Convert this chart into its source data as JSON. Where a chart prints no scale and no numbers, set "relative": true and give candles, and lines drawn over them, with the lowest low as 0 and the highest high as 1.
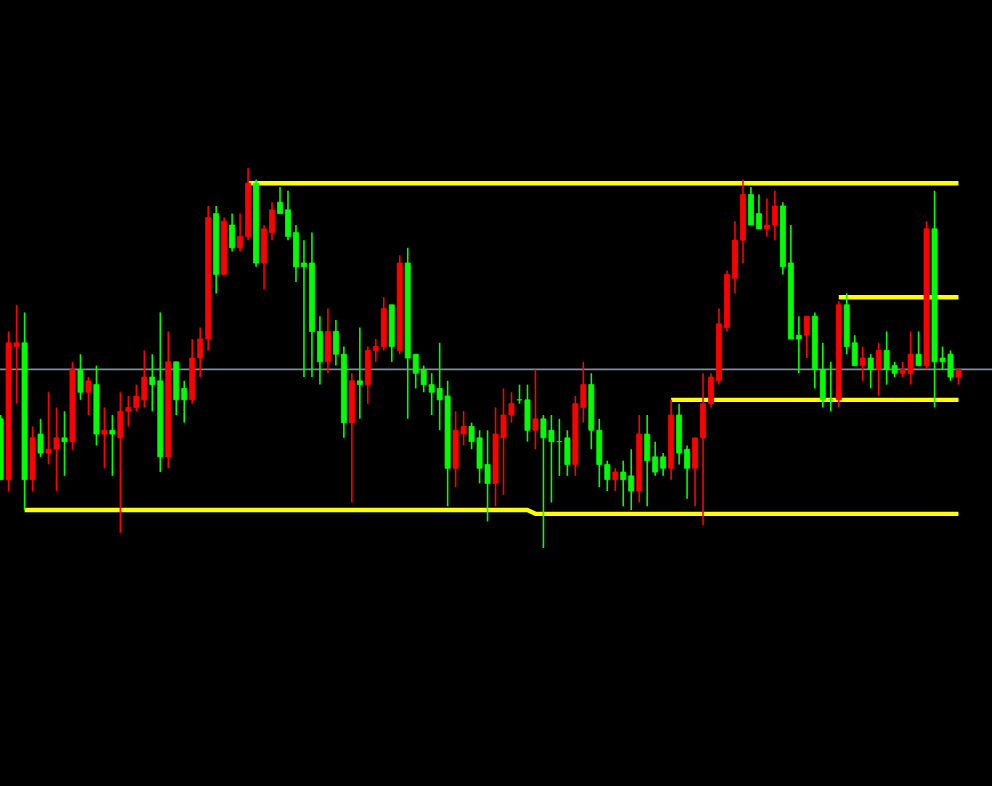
{
  "chart_data": {
    "type": "candlestick",
    "relative": true,
    "categories": [
      null,
      null,
      null,
      null,
      null,
      null,
      null,
      null,
      null,
      null,
      null,
      null,
      null,
      null,
      null,
      null,
      null,
      null,
      null,
      null,
      null,
      null,
      null,
      null,
      null,
      null,
      null,
      null,
      null,
      null,
      null,
      null,
      null,
      null,
      null,
      null,
      null,
      null,
      null,
      null,
      null,
      null,
      null,
      null,
      null,
      null,
      null,
      null,
      null,
      null,
      null,
      null,
      null,
      null,
      null,
      null,
      null,
      null,
      null,
      null,
      null,
      null,
      null,
      null,
      null,
      null,
      null,
      null,
      null,
      null,
      null,
      null,
      null,
      null,
      null,
      null,
      null,
      null,
      null,
      null,
      null,
      null,
      null,
      null,
      null,
      null,
      null,
      null,
      null,
      null,
      null,
      null,
      null,
      null,
      null,
      null,
      null,
      null,
      null,
      null,
      null,
      null,
      null,
      null,
      null,
      null,
      null,
      null,
      null,
      null,
      null,
      null,
      null,
      null,
      null,
      null,
      null,
      null,
      null,
      null,
      null
    ],
    "ohlc": [
      [
        0.34,
        0.35,
        0.18,
        0.18
      ],
      [
        0.18,
        0.57,
        0.15,
        0.54
      ],
      [
        0.53,
        0.64,
        0.38,
        0.54
      ],
      [
        0.54,
        0.62,
        0.1,
        0.18
      ],
      [
        0.18,
        0.32,
        0.15,
        0.29
      ],
      [
        0.3,
        0.34,
        0.24,
        0.25
      ],
      [
        0.25,
        0.41,
        0.22,
        0.26
      ],
      [
        0.26,
        0.37,
        0.15,
        0.29
      ],
      [
        0.29,
        0.36,
        0.19,
        0.28
      ],
      [
        0.28,
        0.49,
        0.26,
        0.47
      ],
      [
        0.47,
        0.51,
        0.39,
        0.41
      ],
      [
        0.41,
        0.45,
        0.35,
        0.44
      ],
      [
        0.43,
        0.48,
        0.27,
        0.3
      ],
      [
        0.3,
        0.37,
        0.21,
        0.31
      ],
      [
        0.31,
        0.35,
        0.19,
        0.3
      ],
      [
        0.29,
        0.41,
        0.04,
        0.36
      ],
      [
        0.36,
        0.4,
        0.32,
        0.37
      ],
      [
        0.37,
        0.43,
        0.36,
        0.4
      ],
      [
        0.39,
        0.52,
        0.37,
        0.45
      ],
      [
        0.45,
        0.51,
        0.36,
        0.43
      ],
      [
        0.44,
        0.62,
        0.2,
        0.24
      ],
      [
        0.24,
        0.57,
        0.21,
        0.49
      ],
      [
        0.49,
        0.49,
        0.35,
        0.39
      ],
      [
        0.42,
        0.44,
        0.33,
        0.39
      ],
      [
        0.39,
        0.55,
        0.38,
        0.5
      ],
      [
        0.5,
        0.58,
        0.45,
        0.55
      ],
      [
        0.55,
        0.9,
        0.52,
        0.87
      ],
      [
        0.88,
        0.9,
        0.67,
        0.72
      ],
      [
        0.72,
        0.87,
        0.72,
        0.86
      ],
      [
        0.85,
        0.88,
        0.78,
        0.79
      ],
      [
        0.79,
        0.88,
        0.78,
        0.82
      ],
      [
        0.82,
        1.0,
        0.81,
        0.96
      ],
      [
        0.96,
        0.97,
        0.74,
        0.75
      ],
      [
        0.75,
        0.85,
        0.68,
        0.84
      ],
      [
        0.83,
        0.91,
        0.81,
        0.89
      ],
      [
        0.91,
        0.95,
        0.88,
        0.88
      ],
      [
        0.89,
        0.94,
        0.81,
        0.82
      ],
      [
        0.83,
        0.85,
        0.7,
        0.74
      ],
      [
        0.75,
        0.81,
        0.45,
        0.74
      ],
      [
        0.75,
        0.83,
        0.45,
        0.57
      ],
      [
        0.57,
        0.61,
        0.43,
        0.49
      ],
      [
        0.49,
        0.63,
        0.46,
        0.57
      ],
      [
        0.57,
        0.6,
        0.48,
        0.51
      ],
      [
        0.51,
        0.53,
        0.29,
        0.33
      ],
      [
        0.33,
        0.46,
        0.12,
        0.44
      ],
      [
        0.44,
        0.58,
        0.34,
        0.43
      ],
      [
        0.43,
        0.53,
        0.38,
        0.52
      ],
      [
        0.52,
        0.55,
        0.49,
        0.53
      ],
      [
        0.53,
        0.66,
        0.52,
        0.63
      ],
      [
        0.64,
        0.64,
        0.49,
        0.53
      ],
      [
        0.52,
        0.77,
        0.51,
        0.75
      ],
      [
        0.75,
        0.79,
        0.34,
        0.5
      ],
      [
        0.51,
        0.51,
        0.42,
        0.46
      ],
      [
        0.47,
        0.48,
        0.41,
        0.43
      ],
      [
        0.43,
        0.46,
        0.35,
        0.41
      ],
      [
        0.42,
        0.54,
        0.31,
        0.39
      ],
      [
        0.4,
        0.44,
        0.11,
        0.21
      ],
      [
        0.21,
        0.36,
        0.16,
        0.31
      ],
      [
        0.3,
        0.36,
        0.27,
        0.32
      ],
      [
        0.32,
        0.33,
        0.26,
        0.28
      ],
      [
        0.29,
        0.31,
        0.17,
        0.21
      ],
      [
        0.22,
        0.31,
        0.07,
        0.17
      ],
      [
        0.17,
        0.37,
        0.11,
        0.3
      ],
      [
        0.29,
        0.42,
        0.14,
        0.35
      ],
      [
        0.35,
        0.41,
        0.33,
        0.38
      ],
      [
        0.39,
        0.43,
        0.38,
        0.39
      ],
      [
        0.39,
        0.43,
        0.28,
        0.31
      ],
      [
        0.31,
        0.47,
        0.26,
        0.34
      ],
      [
        0.34,
        0.35,
        0.0,
        0.29
      ],
      [
        0.31,
        0.35,
        0.12,
        0.28
      ],
      [
        0.28,
        0.34,
        0.19,
        0.28
      ],
      [
        0.29,
        0.31,
        0.19,
        0.22
      ],
      [
        0.22,
        0.4,
        0.19,
        0.38
      ],
      [
        0.37,
        0.49,
        0.33,
        0.43
      ],
      [
        0.43,
        0.46,
        0.26,
        0.31
      ],
      [
        0.31,
        0.34,
        0.16,
        0.22
      ],
      [
        0.22,
        0.23,
        0.15,
        0.18
      ],
      [
        0.18,
        0.21,
        0.15,
        0.2
      ],
      [
        0.2,
        0.23,
        0.11,
        0.18
      ],
      [
        0.19,
        0.26,
        0.1,
        0.15
      ],
      [
        0.15,
        0.35,
        0.12,
        0.3
      ],
      [
        0.3,
        0.35,
        0.11,
        0.23
      ],
      [
        0.24,
        0.28,
        0.19,
        0.2
      ],
      [
        0.24,
        0.25,
        0.19,
        0.21
      ],
      [
        0.21,
        0.39,
        0.18,
        0.35
      ],
      [
        0.35,
        0.38,
        0.22,
        0.25
      ],
      [
        0.26,
        0.27,
        0.13,
        0.21
      ],
      [
        0.21,
        0.29,
        0.11,
        0.29
      ],
      [
        0.29,
        0.46,
        0.06,
        0.38
      ],
      [
        0.38,
        0.46,
        0.37,
        0.45
      ],
      [
        0.44,
        0.63,
        0.43,
        0.59
      ],
      [
        0.58,
        0.73,
        0.57,
        0.72
      ],
      [
        0.71,
        0.86,
        0.67,
        0.81
      ],
      [
        0.81,
        0.97,
        0.75,
        0.93
      ],
      [
        0.93,
        0.95,
        0.85,
        0.85
      ],
      [
        0.88,
        0.93,
        0.84,
        0.84
      ],
      [
        0.84,
        0.92,
        0.82,
        0.85
      ],
      [
        0.85,
        0.94,
        0.81,
        0.9
      ],
      [
        0.9,
        0.91,
        0.72,
        0.74
      ],
      [
        0.75,
        0.85,
        0.55,
        0.55
      ],
      [
        0.56,
        0.61,
        0.46,
        0.55
      ],
      [
        0.56,
        0.61,
        0.5,
        0.61
      ],
      [
        0.61,
        0.62,
        0.42,
        0.47
      ],
      [
        0.47,
        0.54,
        0.37,
        0.39
      ],
      [
        0.39,
        0.49,
        0.36,
        0.39
      ],
      [
        0.39,
        0.65,
        0.37,
        0.64
      ],
      [
        0.64,
        0.67,
        0.51,
        0.53
      ],
      [
        0.54,
        0.56,
        0.48,
        0.48
      ],
      [
        0.48,
        0.53,
        0.44,
        0.5
      ],
      [
        0.5,
        0.51,
        0.42,
        0.47
      ],
      [
        0.47,
        0.54,
        0.4,
        0.52
      ],
      [
        0.52,
        0.57,
        0.43,
        0.47
      ],
      [
        0.48,
        0.49,
        0.45,
        0.46
      ],
      [
        0.46,
        0.49,
        0.45,
        0.47
      ],
      [
        0.46,
        0.57,
        0.43,
        0.51
      ],
      [
        0.51,
        0.57,
        0.48,
        0.48
      ],
      [
        0.48,
        0.86,
        0.47,
        0.84
      ],
      [
        0.84,
        0.94,
        0.37,
        0.49
      ],
      [
        0.5,
        0.53,
        0.47,
        0.49
      ],
      [
        0.51,
        0.52,
        0.44,
        0.45
      ],
      [
        0.45,
        0.47,
        0.43,
        0.47
      ]
    ],
    "colors": [
      "#00ff00",
      "#ff0000",
      "#ff0000",
      "#00ff00",
      "#ff0000",
      "#00ff00",
      "#ff0000",
      "#ff0000",
      "#00ff00",
      "#ff0000",
      "#00ff00",
      "#ff0000",
      "#00ff00",
      "#ff0000",
      "#00ff00",
      "#ff0000",
      "#ff0000",
      "#ff0000",
      "#ff0000",
      "#00ff00",
      "#00ff00",
      "#ff0000",
      "#00ff00",
      "#00ff00",
      "#ff0000",
      "#ff0000",
      "#ff0000",
      "#00ff00",
      "#ff0000",
      "#00ff00",
      "#ff0000",
      "#ff0000",
      "#00ff00",
      "#ff0000",
      "#ff0000",
      "#00ff00",
      "#00ff00",
      "#00ff00",
      "#00ff00",
      "#00ff00",
      "#00ff00",
      "#ff0000",
      "#00ff00",
      "#00ff00",
      "#ff0000",
      "#00ff00",
      "#ff0000",
      "#ff0000",
      "#ff0000",
      "#00ff00",
      "#ff0000",
      "#00ff00",
      "#00ff00",
      "#00ff00",
      "#00ff00",
      "#00ff00",
      "#00ff00",
      "#ff0000",
      "#ff0000",
      "#00ff00",
      "#00ff00",
      "#00ff00",
      "#ff0000",
      "#ff0000",
      "#ff0000",
      "#00ff00",
      "#00ff00",
      "#ff0000",
      "#00ff00",
      "#00ff00",
      "#00ff00",
      "#00ff00",
      "#ff0000",
      "#ff0000",
      "#00ff00",
      "#00ff00",
      "#00ff00",
      "#ff0000",
      "#00ff00",
      "#00ff00",
      "#ff0000",
      "#00ff00",
      "#00ff00",
      "#00ff00",
      "#ff0000",
      "#00ff00",
      "#00ff00",
      "#ff0000",
      "#ff0000",
      "#ff0000",
      "#ff0000",
      "#ff0000",
      "#ff0000",
      "#ff0000",
      "#00ff00",
      "#00ff00",
      "#ff0000",
      "#ff0000",
      "#00ff00",
      "#00ff00",
      "#00ff00",
      "#ff0000",
      "#00ff00",
      "#00ff00",
      "#00ff00",
      "#ff0000",
      "#00ff00",
      "#00ff00",
      "#ff0000",
      "#00ff00",
      "#ff0000",
      "#00ff00",
      "#00ff00",
      "#ff0000",
      "#ff0000",
      "#00ff00",
      "#ff0000",
      "#00ff00",
      "#00ff00",
      "#00ff00",
      "#ff0000"
    ],
    "series": [
      {
        "type": "line",
        "color": "#ffff00",
        "values": [
          null,
          null,
          null,
          null,
          null,
          null,
          null,
          null,
          null,
          null,
          null,
          null,
          null,
          null,
          null,
          null,
          null,
          null,
          null,
          null,
          null,
          null,
          null,
          null,
          null,
          null,
          null,
          null,
          null,
          null,
          null,
          0.96,
          0.96,
          0.96,
          0.96,
          0.96,
          0.96,
          0.96,
          0.96,
          0.96,
          0.96,
          0.96,
          0.96,
          0.96,
          0.96,
          0.96,
          0.96,
          0.96,
          0.96,
          0.96,
          0.96,
          0.96,
          0.96,
          0.96,
          0.96,
          0.96,
          0.96,
          0.96,
          0.96,
          0.96,
          0.96,
          0.96,
          0.96,
          0.96,
          0.96,
          0.96,
          0.96,
          0.96,
          0.96,
          0.96,
          0.96,
          0.96,
          0.96,
          0.96,
          0.96,
          0.96,
          0.96,
          0.96,
          0.96,
          0.96,
          0.96,
          0.96,
          0.96,
          0.96,
          0.96,
          0.96,
          0.96,
          0.96,
          0.96,
          0.96,
          0.96,
          0.96,
          0.96,
          0.96,
          0.96,
          0.96,
          0.96,
          0.96,
          0.96,
          0.96,
          0.96,
          0.96,
          0.96,
          0.96,
          0.96,
          0.96,
          0.96,
          0.96,
          0.96,
          0.96,
          0.96,
          0.96,
          0.96,
          0.96,
          0.96,
          0.96,
          0.96,
          0.96,
          0.96,
          0.96,
          0.96
        ]
      },
      {
        "type": "line",
        "color": "#ffff00",
        "values": [
          null,
          null,
          null,
          null,
          null,
          null,
          null,
          null,
          null,
          null,
          null,
          null,
          null,
          null,
          null,
          null,
          null,
          null,
          null,
          null,
          null,
          null,
          null,
          null,
          null,
          null,
          null,
          null,
          null,
          null,
          null,
          null,
          null,
          null,
          null,
          null,
          null,
          null,
          null,
          null,
          null,
          null,
          null,
          null,
          null,
          null,
          null,
          null,
          null,
          null,
          null,
          null,
          null,
          null,
          null,
          null,
          null,
          null,
          null,
          null,
          null,
          null,
          null,
          null,
          null,
          null,
          null,
          null,
          null,
          null,
          null,
          null,
          null,
          null,
          null,
          null,
          null,
          null,
          null,
          null,
          null,
          null,
          null,
          null,
          null,
          null,
          null,
          null,
          null,
          null,
          null,
          null,
          null,
          null,
          null,
          null,
          null,
          null,
          null,
          null,
          null,
          null,
          null,
          null,
          null,
          0.66,
          0.66,
          0.66,
          0.66,
          0.66,
          0.66,
          0.66,
          0.66,
          0.66,
          0.66,
          0.66,
          0.66,
          0.66,
          0.66,
          0.66,
          0.66
        ]
      },
      {
        "type": "line",
        "color": "#ffff00",
        "values": [
          null,
          null,
          null,
          null,
          null,
          null,
          null,
          null,
          null,
          null,
          null,
          null,
          null,
          null,
          null,
          null,
          null,
          null,
          null,
          null,
          null,
          null,
          null,
          null,
          null,
          null,
          null,
          null,
          null,
          null,
          null,
          null,
          null,
          null,
          null,
          null,
          null,
          null,
          null,
          null,
          null,
          null,
          null,
          null,
          null,
          null,
          null,
          null,
          null,
          null,
          null,
          null,
          null,
          null,
          null,
          null,
          null,
          null,
          null,
          null,
          null,
          null,
          null,
          null,
          null,
          null,
          null,
          null,
          null,
          null,
          null,
          null,
          null,
          null,
          null,
          null,
          null,
          null,
          null,
          null,
          null,
          null,
          null,
          null,
          0.39,
          0.39,
          0.39,
          0.39,
          0.39,
          0.39,
          0.39,
          0.39,
          0.39,
          0.39,
          0.39,
          0.39,
          0.39,
          0.39,
          0.39,
          0.39,
          0.39,
          0.39,
          0.39,
          0.39,
          0.39,
          0.39,
          0.39,
          0.39,
          0.39,
          0.39,
          0.39,
          0.39,
          0.39,
          0.39,
          0.39,
          0.39,
          0.39,
          0.39,
          0.39,
          0.39,
          0.39
        ]
      },
      {
        "type": "line",
        "color": "#ffff00",
        "values": [
          null,
          null,
          null,
          0.1,
          0.1,
          0.1,
          0.1,
          0.1,
          0.1,
          0.1,
          0.1,
          0.1,
          0.1,
          0.1,
          0.1,
          0.1,
          0.1,
          0.1,
          0.1,
          0.1,
          0.1,
          0.1,
          0.1,
          0.1,
          0.1,
          0.1,
          0.1,
          0.1,
          0.1,
          0.1,
          0.1,
          0.1,
          0.1,
          0.1,
          0.1,
          0.1,
          0.1,
          0.1,
          0.1,
          0.1,
          0.1,
          0.1,
          0.1,
          0.1,
          0.1,
          0.1,
          0.1,
          0.1,
          0.1,
          0.1,
          0.1,
          0.1,
          0.1,
          0.1,
          0.1,
          0.1,
          0.1,
          0.1,
          0.1,
          0.1,
          0.1,
          0.1,
          0.1,
          0.1,
          0.1,
          0.1,
          0.1,
          0.09,
          0.09,
          0.09,
          0.09,
          0.09,
          0.09,
          0.09,
          0.09,
          0.09,
          0.09,
          0.09,
          0.09,
          0.09,
          0.09,
          0.09,
          0.09,
          0.09,
          0.09,
          0.09,
          0.09,
          0.09,
          0.09,
          0.09,
          0.09,
          0.09,
          0.09,
          0.09,
          0.09,
          0.09,
          0.09,
          0.09,
          0.09,
          0.09,
          0.09,
          0.09,
          0.09,
          0.09,
          0.09,
          0.09,
          0.09,
          0.09,
          0.09,
          0.09,
          0.09,
          0.09,
          0.09,
          0.09,
          0.09,
          0.09,
          0.09,
          0.09,
          0.09,
          0.09,
          0.09
        ]
      }
    ],
    "ref_lines": [
      {
        "axis": "y",
        "value": 0.47,
        "color": "#7f8c9c"
      }
    ]
  }
}
